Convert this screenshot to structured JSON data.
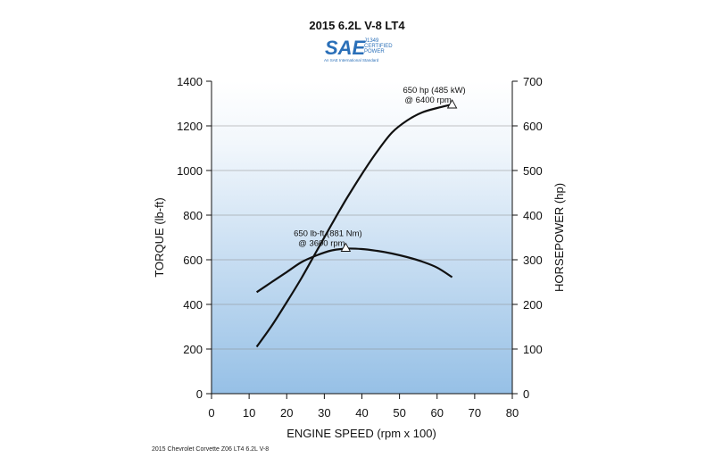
{
  "chart_data": {
    "type": "line",
    "title": "2015 6.2L V-8 LT4",
    "xlabel": "ENGINE SPEED (rpm x 100)",
    "ylabel_left": "TORQUE (lb-ft)",
    "ylabel_right": "HORSEPOWER (hp)",
    "xlim": [
      0,
      80
    ],
    "ylim_left": [
      0,
      1400
    ],
    "ylim_right": [
      0,
      700
    ],
    "x_ticks": [
      0,
      10,
      20,
      30,
      40,
      50,
      60,
      70,
      80
    ],
    "y_ticks_left": [
      0,
      200,
      400,
      600,
      800,
      1000,
      1200,
      1400
    ],
    "y_ticks_right": [
      0,
      100,
      200,
      300,
      400,
      500,
      600,
      700
    ],
    "grid": "horizontal",
    "series": [
      {
        "name": "torque",
        "axis": "left",
        "x": [
          12,
          16,
          20,
          24,
          28,
          32,
          36,
          40,
          44,
          48,
          52,
          56,
          60,
          64
        ],
        "y": [
          455,
          500,
          545,
          590,
          620,
          642,
          650,
          648,
          640,
          628,
          612,
          592,
          565,
          522
        ]
      },
      {
        "name": "horsepower",
        "axis": "right",
        "x": [
          12,
          16,
          20,
          24,
          28,
          32,
          36,
          40,
          44,
          48,
          52,
          56,
          60,
          64
        ],
        "y": [
          105,
          152,
          205,
          260,
          320,
          380,
          438,
          492,
          542,
          585,
          612,
          630,
          640,
          648
        ]
      }
    ],
    "annotations": [
      {
        "series": "horsepower",
        "x": 64,
        "y": 648,
        "line1": "650 hp (485 kW)",
        "line2": "@ 6400 rpm"
      },
      {
        "series": "torque",
        "x": 35.7,
        "y": 654,
        "line1": "650 lb-ft (881 Nm)",
        "line2": "@ 3600 rpm"
      }
    ]
  },
  "logo": {
    "mark": "SAE",
    "line1": "J1349",
    "line2": "CERTIFIED",
    "line3": "POWER",
    "line4": "An SAE International Standard"
  },
  "footer": "2015 Chevrolet Corvette Z06 LT4 6.2L V-8",
  "colors": {
    "gradient_top": "#ffffff",
    "gradient_bottom": "#96c0e6",
    "line": "#111111",
    "logo_blue": "#2a6fb8"
  }
}
